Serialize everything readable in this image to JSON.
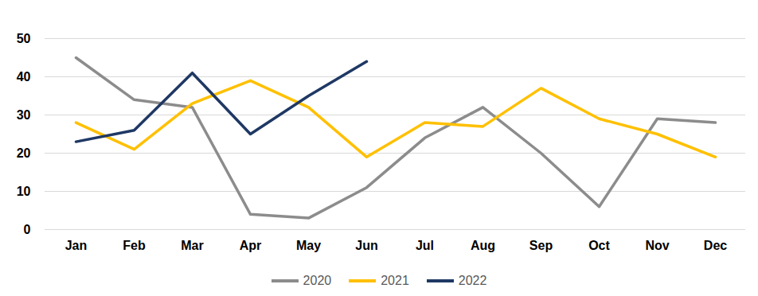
{
  "chart_data": {
    "type": "line",
    "categories": [
      "Jan",
      "Feb",
      "Mar",
      "Apr",
      "May",
      "Jun",
      "Jul",
      "Aug",
      "Sep",
      "Oct",
      "Nov",
      "Dec"
    ],
    "series": [
      {
        "name": "2020",
        "color": "#8c8c8c",
        "values": [
          45,
          34,
          32,
          4,
          3,
          11,
          24,
          32,
          20,
          6,
          29,
          28
        ]
      },
      {
        "name": "2021",
        "color": "#ffc000",
        "values": [
          28,
          21,
          33,
          39,
          32,
          19,
          28,
          27,
          37,
          29,
          25,
          19
        ]
      },
      {
        "name": "2022",
        "color": "#1f3864",
        "values": [
          23,
          26,
          41,
          25,
          35,
          44,
          null,
          null,
          null,
          null,
          null,
          null
        ]
      }
    ],
    "ylim": [
      0,
      50
    ],
    "yticks": [
      0,
      10,
      20,
      30,
      40,
      50
    ],
    "grid": true,
    "legend": "bottom"
  }
}
